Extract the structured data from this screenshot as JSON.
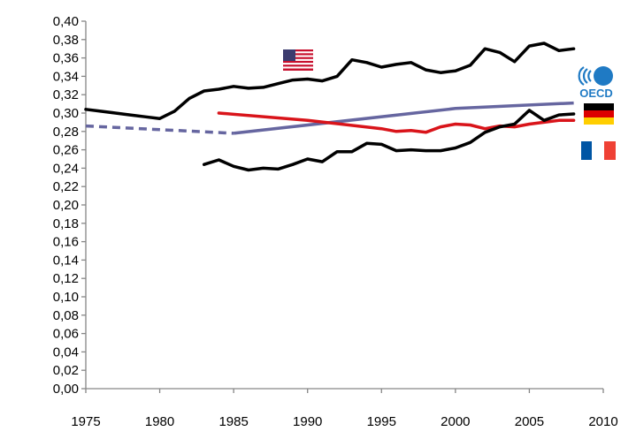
{
  "chart_data": {
    "type": "line",
    "title": "",
    "xlabel": "",
    "ylabel": "",
    "xlim": [
      1975,
      2010
    ],
    "ylim": [
      0,
      0.4
    ],
    "x_ticks": [
      "1975",
      "1980",
      "1985",
      "1990",
      "1995",
      "2000",
      "2005",
      "2010"
    ],
    "y_ticks": [
      "0,00",
      "0,02",
      "0,04",
      "0,06",
      "0,08",
      "0,10",
      "0,12",
      "0,14",
      "0,16",
      "0,18",
      "0,20",
      "0,22",
      "0,24",
      "0,26",
      "0,28",
      "0,30",
      "0,32",
      "0,34",
      "0,36",
      "0,38",
      "0,40"
    ],
    "grid": false,
    "legend": "flag icons at right end of lines",
    "series": [
      {
        "icon": "us-flag-icon",
        "color": "#000000",
        "style": "solid",
        "x": [
          1975,
          1976,
          1977,
          1978,
          1979,
          1980,
          1981,
          1982,
          1983,
          1984,
          1985,
          1986,
          1987,
          1988,
          1989,
          1990,
          1991,
          1992,
          1993,
          1994,
          1995,
          1996,
          1997,
          1998,
          1999,
          2000,
          2001,
          2002,
          2003,
          2004,
          2005,
          2006,
          2007,
          2008
        ],
        "y": [
          0.304,
          0.302,
          0.3,
          0.298,
          0.296,
          0.294,
          0.302,
          0.316,
          0.324,
          0.326,
          0.329,
          0.327,
          0.328,
          0.332,
          0.336,
          0.337,
          0.335,
          0.34,
          0.358,
          0.355,
          0.35,
          0.353,
          0.355,
          0.347,
          0.344,
          0.346,
          0.352,
          0.37,
          0.366,
          0.356,
          0.373,
          0.376,
          0.368,
          0.37
        ]
      },
      {
        "icon": "oecd-logo-icon",
        "color": "#6666a0",
        "style": "dashed-solid",
        "dashed_until": 1985,
        "x": [
          1975,
          1985,
          2000,
          2008
        ],
        "y": [
          0.286,
          0.278,
          0.305,
          0.311
        ]
      },
      {
        "icon": "germany-flag-icon",
        "color": "#d9141a",
        "style": "solid",
        "x": [
          1984,
          1990,
          1995,
          1996,
          1997,
          1998,
          1999,
          2000,
          2001,
          2002,
          2003,
          2004,
          2005,
          2006,
          2007,
          2008
        ],
        "y": [
          0.3,
          0.292,
          0.283,
          0.28,
          0.281,
          0.279,
          0.285,
          0.288,
          0.287,
          0.283,
          0.286,
          0.285,
          0.288,
          0.29,
          0.292,
          0.292
        ]
      },
      {
        "icon": "france-flag-icon",
        "color": "#000000",
        "style": "solid",
        "x": [
          1983,
          1984,
          1985,
          1986,
          1987,
          1988,
          1989,
          1990,
          1991,
          1992,
          1993,
          1994,
          1995,
          1996,
          1997,
          1998,
          1999,
          2000,
          2001,
          2002,
          2003,
          2004,
          2005,
          2006,
          2007,
          2008
        ],
        "y": [
          0.244,
          0.249,
          0.242,
          0.238,
          0.24,
          0.239,
          0.244,
          0.25,
          0.247,
          0.258,
          0.258,
          0.267,
          0.266,
          0.259,
          0.26,
          0.259,
          0.259,
          0.262,
          0.268,
          0.279,
          0.285,
          0.288,
          0.303,
          0.292,
          0.298,
          0.299
        ]
      }
    ]
  },
  "colors": {
    "axis": "#868686",
    "us_line": "#000000",
    "oecd_line": "#6666a0",
    "germany_line": "#d9141a",
    "france_line": "#000000"
  }
}
